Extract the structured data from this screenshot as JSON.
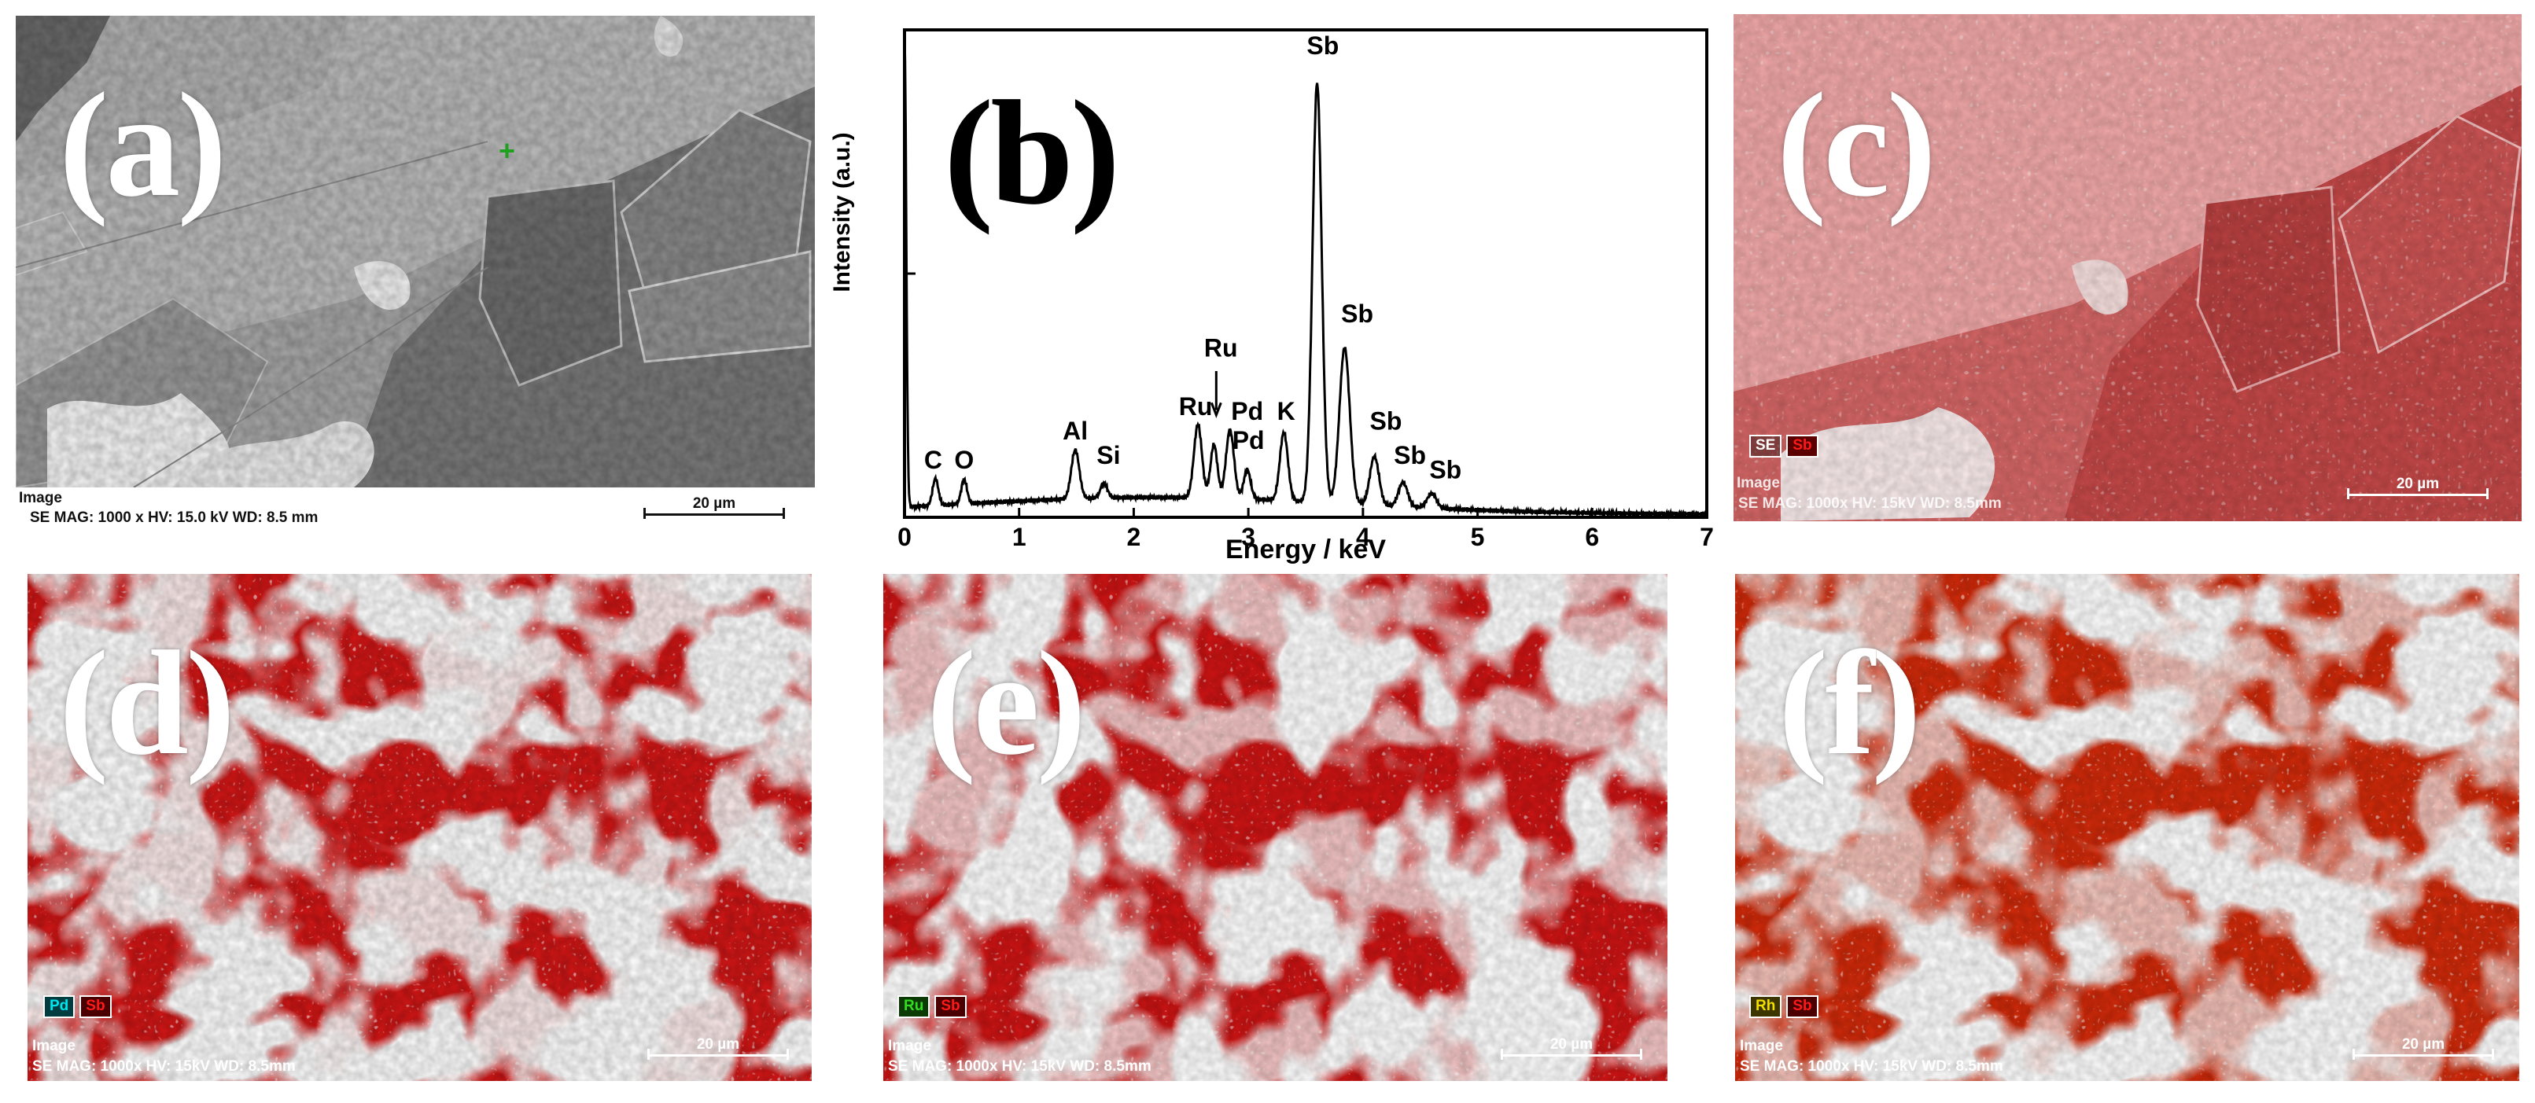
{
  "panels": {
    "a": {
      "letter": "(a)",
      "info_image": "Image",
      "info_params": "SE  MAG: 1000 x  HV: 15.0 kV  WD: 8.5 mm",
      "scale": "20 µm"
    },
    "b": {
      "letter": "(b)"
    },
    "c": {
      "letter": "(c)",
      "legend": [
        "SE",
        "Sb"
      ],
      "info_image": "Image",
      "info_params": "SE  MAG: 1000x  HV: 15kV  WD: 8.5mm",
      "scale": "20 µm"
    },
    "d": {
      "letter": "(d)",
      "legend": [
        "Pd",
        "Sb"
      ],
      "info_image": "Image",
      "info_params": "SE  MAG: 1000x  HV: 15kV  WD: 8.5mm",
      "scale": "20 µm"
    },
    "e": {
      "letter": "(e)",
      "legend": [
        "Ru",
        "Sb"
      ],
      "info_image": "Image",
      "info_params": "SE  MAG: 1000x  HV: 15kV  WD: 8.5mm",
      "scale": "20 µm"
    },
    "f": {
      "letter": "(f)",
      "legend": [
        "Rh",
        "Sb"
      ],
      "info_image": "Image",
      "info_params": "SE  MAG: 1000x  HV: 15kV  WD: 8.5mm",
      "scale": "20 µm"
    }
  },
  "colors": {
    "Pd": "#00e5ee",
    "Sb": "#ff1a1a",
    "Ru": "#33dd22",
    "Rh": "#f0e000",
    "SE": "#ffffff"
  },
  "chart_data": {
    "type": "line",
    "xlabel": "Energy / keV",
    "ylabel": "Intensity (a.u.)",
    "xlim": [
      0,
      7
    ],
    "xticks": [
      0,
      1,
      2,
      3,
      4,
      5,
      6,
      7
    ],
    "ylim": [
      0,
      100
    ],
    "baseline": 3.5,
    "peaks": [
      {
        "x": 0.0,
        "height": 97,
        "width": 0.015
      },
      {
        "x": 0.27,
        "height": 5.5,
        "width": 0.025
      },
      {
        "x": 0.52,
        "height": 5,
        "width": 0.025
      },
      {
        "x": 1.49,
        "height": 10,
        "width": 0.035
      },
      {
        "x": 1.74,
        "height": 3,
        "width": 0.03
      },
      {
        "x": 2.56,
        "height": 15,
        "width": 0.035
      },
      {
        "x": 2.7,
        "height": 11,
        "width": 0.03
      },
      {
        "x": 2.84,
        "height": 14,
        "width": 0.035
      },
      {
        "x": 2.99,
        "height": 6,
        "width": 0.03
      },
      {
        "x": 3.31,
        "height": 14,
        "width": 0.035
      },
      {
        "x": 3.6,
        "height": 86,
        "width": 0.04
      },
      {
        "x": 3.84,
        "height": 32,
        "width": 0.045
      },
      {
        "x": 4.1,
        "height": 10,
        "width": 0.04
      },
      {
        "x": 4.35,
        "height": 5,
        "width": 0.04
      },
      {
        "x": 4.6,
        "height": 3,
        "width": 0.04
      }
    ],
    "peak_labels": [
      {
        "text": "C",
        "x": 0.25,
        "y": 10
      },
      {
        "text": "O",
        "x": 0.52,
        "y": 10
      },
      {
        "text": "Al",
        "x": 1.49,
        "y": 16
      },
      {
        "text": "Si",
        "x": 1.78,
        "y": 11
      },
      {
        "text": "Ru",
        "x": 2.54,
        "y": 21
      },
      {
        "text": "Ru",
        "x": 2.76,
        "y": 33
      },
      {
        "text": "Pd",
        "x": 2.99,
        "y": 20
      },
      {
        "text": "Pd",
        "x": 3.0,
        "y": 14
      },
      {
        "text": "K",
        "x": 3.33,
        "y": 20
      },
      {
        "text": "Sb",
        "x": 3.65,
        "y": 95
      },
      {
        "text": "Sb",
        "x": 3.95,
        "y": 40
      },
      {
        "text": "Sb",
        "x": 4.2,
        "y": 18
      },
      {
        "text": "Sb",
        "x": 4.41,
        "y": 11
      },
      {
        "text": "Sb",
        "x": 4.72,
        "y": 8
      }
    ]
  }
}
